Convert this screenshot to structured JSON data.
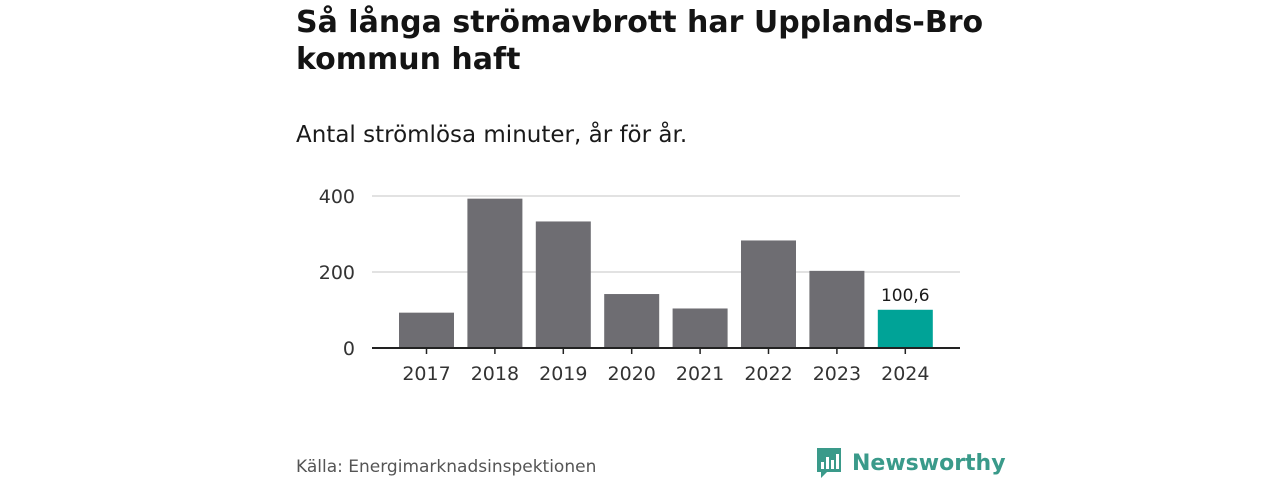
{
  "title": "Så långa strömavbrott har Upplands-Bro kommun haft",
  "subtitle": "Antal strömlösa minuter, år för år.",
  "source": "Källa: Energimarknadsinspektionen",
  "brand": {
    "name": "Newsworthy",
    "icon": "bar-chart-icon",
    "color": "#3a9a8a"
  },
  "colors": {
    "bar": "#6e6d72",
    "highlight": "#00a397",
    "grid": "#d9d9d9",
    "axis": "#222222"
  },
  "chart_data": {
    "type": "bar",
    "title": "Så långa strömavbrott har Upplands-Bro kommun haft",
    "subtitle": "Antal strömlösa minuter, år för år.",
    "categories": [
      "2017",
      "2018",
      "2019",
      "2020",
      "2021",
      "2022",
      "2023",
      "2024"
    ],
    "values": [
      93,
      393,
      333,
      142,
      104,
      283,
      203,
      100.6
    ],
    "highlight_index": 7,
    "data_labels": [
      {
        "index": 7,
        "text": "100,6"
      }
    ],
    "yticks": [
      "0",
      "200",
      "400"
    ],
    "ytick_values": [
      0,
      200,
      400
    ],
    "ylim": [
      0,
      400
    ],
    "xlabel": "",
    "ylabel": "",
    "grid": true
  }
}
